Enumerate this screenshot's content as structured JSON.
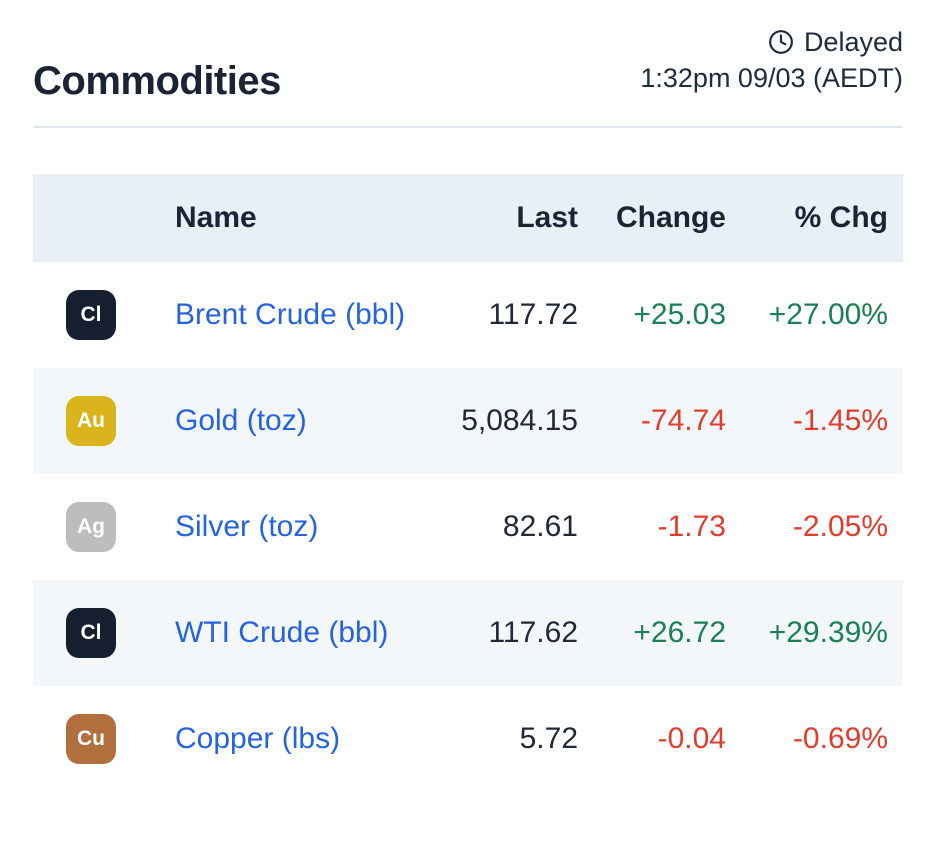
{
  "header": {
    "title": "Commodities",
    "status_label": "Delayed",
    "timestamp": "1:32pm 09/03 (AEDT)"
  },
  "table": {
    "columns": [
      "Name",
      "Last",
      "Change",
      "% Chg"
    ],
    "colors": {
      "up": "#1a8152",
      "down": "#e23c2d",
      "link": "#2563e0",
      "header_bg": "#e9eff7",
      "row_shaded_bg": "#f3f7fa"
    },
    "rows": [
      {
        "symbol": "Cl",
        "badge_color": "#161f30",
        "name": "Brent Crude (bbl)",
        "last": "117.72",
        "change": "+25.03",
        "pct_chg": "+27.00%",
        "direction": "up",
        "shaded": false
      },
      {
        "symbol": "Au",
        "badge_color": "#d9b41c",
        "name": "Gold (toz)",
        "last": "5,084.15",
        "change": "-74.74",
        "pct_chg": "-1.45%",
        "direction": "down",
        "shaded": true
      },
      {
        "symbol": "Ag",
        "badge_color": "#bdbdbd",
        "name": "Silver (toz)",
        "last": "82.61",
        "change": "-1.73",
        "pct_chg": "-2.05%",
        "direction": "down",
        "shaded": false
      },
      {
        "symbol": "Cl",
        "badge_color": "#161f30",
        "name": "WTI Crude (bbl)",
        "last": "117.62",
        "change": "+26.72",
        "pct_chg": "+29.39%",
        "direction": "up",
        "shaded": true
      },
      {
        "symbol": "Cu",
        "badge_color": "#b06f3d",
        "name": "Copper (lbs)",
        "last": "5.72",
        "change": "-0.04",
        "pct_chg": "-0.69%",
        "direction": "down",
        "shaded": false
      }
    ]
  }
}
